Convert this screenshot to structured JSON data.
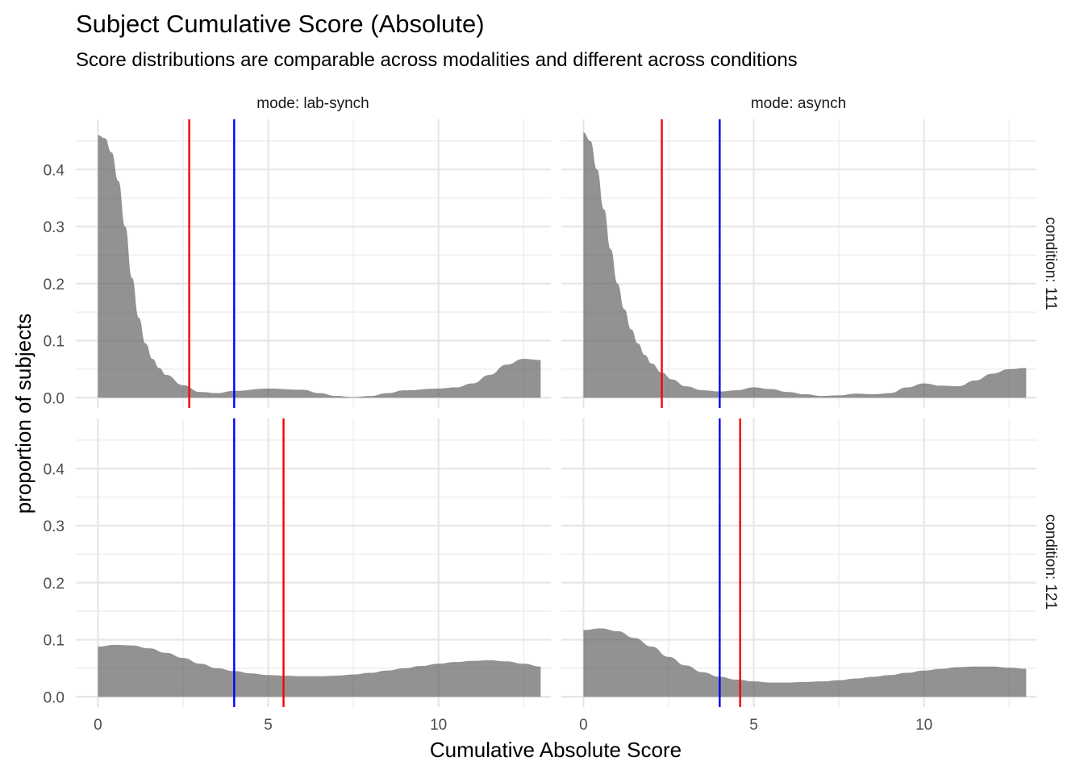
{
  "chart_data": {
    "type": "area",
    "title": "Subject Cumulative Score (Absolute)",
    "subtitle": "Score distributions are comparable across modalities and different across conditions",
    "xlabel": "Cumulative Absolute Score",
    "ylabel": "proportion of subjects",
    "xlim": [
      -0.65,
      13.3
    ],
    "ylim": [
      -0.018,
      0.488
    ],
    "x_ticks": [
      0,
      5,
      10
    ],
    "x_tick_labels": [
      "0",
      "5",
      "10"
    ],
    "y_ticks": [
      0,
      0.1,
      0.2,
      0.3,
      0.4
    ],
    "y_tick_labels": [
      "0.0",
      "0.1",
      "0.2",
      "0.3",
      "0.4"
    ],
    "grid": true,
    "fill_color": "#595959",
    "line_colors": {
      "red": "#ff0000",
      "blue": "#0000ff"
    },
    "column_strips": [
      "mode: lab-synch",
      "mode: asynch"
    ],
    "row_strips": [
      "condition: 111",
      "condition: 121"
    ],
    "panels": [
      {
        "mode": "lab-synch",
        "condition": "111",
        "density": {
          "x": [
            0,
            0.2,
            0.4,
            0.6,
            0.8,
            1,
            1.2,
            1.4,
            1.6,
            1.8,
            2,
            2.5,
            3,
            3.5,
            4,
            5,
            6,
            6.5,
            7,
            7.5,
            8,
            8.5,
            9,
            10,
            10.5,
            11,
            11.5,
            12,
            12.5,
            13
          ],
          "y": [
            0.46,
            0.455,
            0.43,
            0.38,
            0.3,
            0.21,
            0.14,
            0.095,
            0.068,
            0.052,
            0.04,
            0.022,
            0.01,
            0.008,
            0.012,
            0.016,
            0.014,
            0.008,
            0.003,
            0.001,
            0.003,
            0.008,
            0.013,
            0.016,
            0.018,
            0.025,
            0.04,
            0.058,
            0.068,
            0.066
          ]
        },
        "red_line": 2.68,
        "blue_line": 4.0
      },
      {
        "mode": "asynch",
        "condition": "111",
        "density": {
          "x": [
            0,
            0.2,
            0.4,
            0.6,
            0.8,
            1,
            1.2,
            1.4,
            1.6,
            1.8,
            2,
            2.3,
            2.6,
            3,
            3.5,
            4,
            4.5,
            5,
            5.5,
            6,
            6.5,
            7,
            7.5,
            8,
            8.5,
            9,
            9.5,
            10,
            10.5,
            11,
            11.5,
            12,
            12.5,
            13
          ],
          "y": [
            0.465,
            0.45,
            0.4,
            0.33,
            0.26,
            0.2,
            0.155,
            0.12,
            0.095,
            0.075,
            0.06,
            0.044,
            0.032,
            0.02,
            0.013,
            0.011,
            0.013,
            0.018,
            0.015,
            0.01,
            0.006,
            0.003,
            0.004,
            0.007,
            0.006,
            0.008,
            0.018,
            0.025,
            0.021,
            0.02,
            0.03,
            0.042,
            0.05,
            0.052
          ]
        },
        "red_line": 2.3,
        "blue_line": 4.0
      },
      {
        "mode": "lab-synch",
        "condition": "121",
        "density": {
          "x": [
            0,
            0.5,
            1,
            1.5,
            2,
            2.5,
            3,
            3.5,
            4,
            4.5,
            5,
            5.5,
            6,
            6.5,
            7,
            7.5,
            8,
            8.5,
            9,
            9.5,
            10,
            10.5,
            11,
            11.5,
            12,
            12.5,
            13
          ],
          "y": [
            0.088,
            0.091,
            0.09,
            0.085,
            0.077,
            0.068,
            0.058,
            0.05,
            0.045,
            0.041,
            0.038,
            0.037,
            0.036,
            0.036,
            0.037,
            0.039,
            0.042,
            0.046,
            0.05,
            0.054,
            0.058,
            0.061,
            0.063,
            0.064,
            0.062,
            0.058,
            0.053
          ]
        },
        "red_line": 5.45,
        "blue_line": 4.0
      },
      {
        "mode": "asynch",
        "condition": "121",
        "density": {
          "x": [
            0,
            0.5,
            1,
            1.5,
            2,
            2.5,
            3,
            3.5,
            4,
            4.5,
            5,
            5.5,
            6,
            6.5,
            7,
            7.5,
            8,
            8.5,
            9,
            9.5,
            10,
            10.5,
            11,
            11.5,
            12,
            12.5,
            13
          ],
          "y": [
            0.117,
            0.12,
            0.115,
            0.103,
            0.088,
            0.07,
            0.055,
            0.043,
            0.035,
            0.03,
            0.027,
            0.025,
            0.025,
            0.026,
            0.027,
            0.029,
            0.032,
            0.035,
            0.038,
            0.042,
            0.046,
            0.049,
            0.052,
            0.053,
            0.053,
            0.051,
            0.049
          ]
        },
        "red_line": 4.6,
        "blue_line": 4.0
      }
    ]
  }
}
